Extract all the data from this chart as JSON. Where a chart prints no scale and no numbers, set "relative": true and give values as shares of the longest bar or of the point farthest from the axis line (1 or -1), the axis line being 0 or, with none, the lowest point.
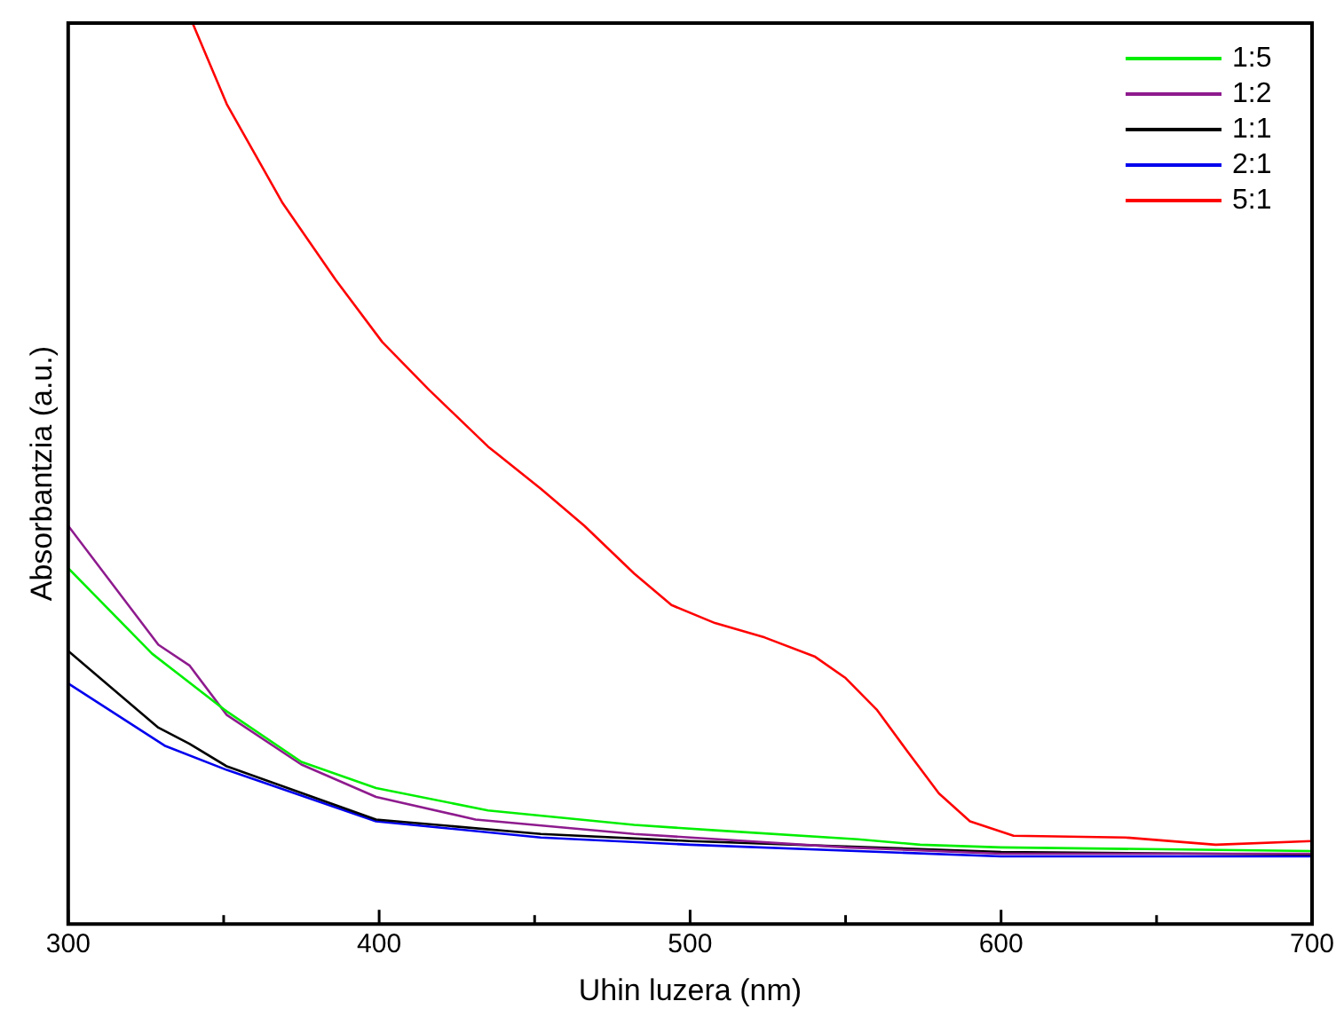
{
  "chart_data": {
    "type": "line",
    "xlabel": "Uhin luzera (nm)",
    "ylabel": "Absorbantzia (a.u.)",
    "relative": true,
    "xlim": [
      300,
      700
    ],
    "xticks": [
      300,
      {
        "value": 350,
        "label": null
      },
      400,
      {
        "value": 450,
        "label": null
      },
      500,
      {
        "value": 550,
        "label": null
      },
      600,
      {
        "value": 650,
        "label": null
      },
      700
    ],
    "legend": "top right",
    "grid": false,
    "marker": "none",
    "line_style": "solid",
    "series": [
      {
        "name": "1:5",
        "color": "#00ee00",
        "x": [
          300,
          327,
          351,
          375,
          399,
          435,
          482,
          508,
          554,
          574,
          600,
          700
        ],
        "values": [
          0.395,
          0.3,
          0.236,
          0.18,
          0.151,
          0.126,
          0.11,
          0.104,
          0.094,
          0.088,
          0.085,
          0.081
        ]
      },
      {
        "name": "1:2",
        "color": "#8e1b8e",
        "x": [
          300,
          329,
          339,
          351,
          375,
          399,
          431,
          482,
          550,
          600,
          700
        ],
        "values": [
          0.442,
          0.31,
          0.287,
          0.232,
          0.177,
          0.141,
          0.116,
          0.1,
          0.085,
          0.078,
          0.078
        ]
      },
      {
        "name": "1:1",
        "color": "#000000",
        "x": [
          300,
          329,
          339,
          351,
          399,
          452,
          500,
          600,
          700
        ],
        "values": [
          0.303,
          0.218,
          0.2,
          0.175,
          0.116,
          0.1,
          0.092,
          0.08,
          0.077
        ]
      },
      {
        "name": "2:1",
        "color": "#0000ee",
        "x": [
          300,
          331,
          351,
          399,
          452,
          500,
          600,
          700
        ],
        "values": [
          0.267,
          0.198,
          0.171,
          0.114,
          0.096,
          0.088,
          0.075,
          0.075
        ]
      },
      {
        "name": "5:1",
        "color": "#ff0000",
        "x": [
          340,
          351,
          369,
          386,
          401,
          416,
          435,
          452,
          466,
          482,
          494,
          508,
          524,
          540,
          550,
          560,
          570,
          580,
          590,
          604,
          640,
          669,
          700
        ],
        "values": [
          1,
          0.91,
          0.8,
          0.715,
          0.646,
          0.593,
          0.53,
          0.483,
          0.442,
          0.389,
          0.354,
          0.334,
          0.318,
          0.297,
          0.273,
          0.238,
          0.191,
          0.145,
          0.114,
          0.098,
          0.096,
          0.088,
          0.092
        ]
      }
    ]
  }
}
